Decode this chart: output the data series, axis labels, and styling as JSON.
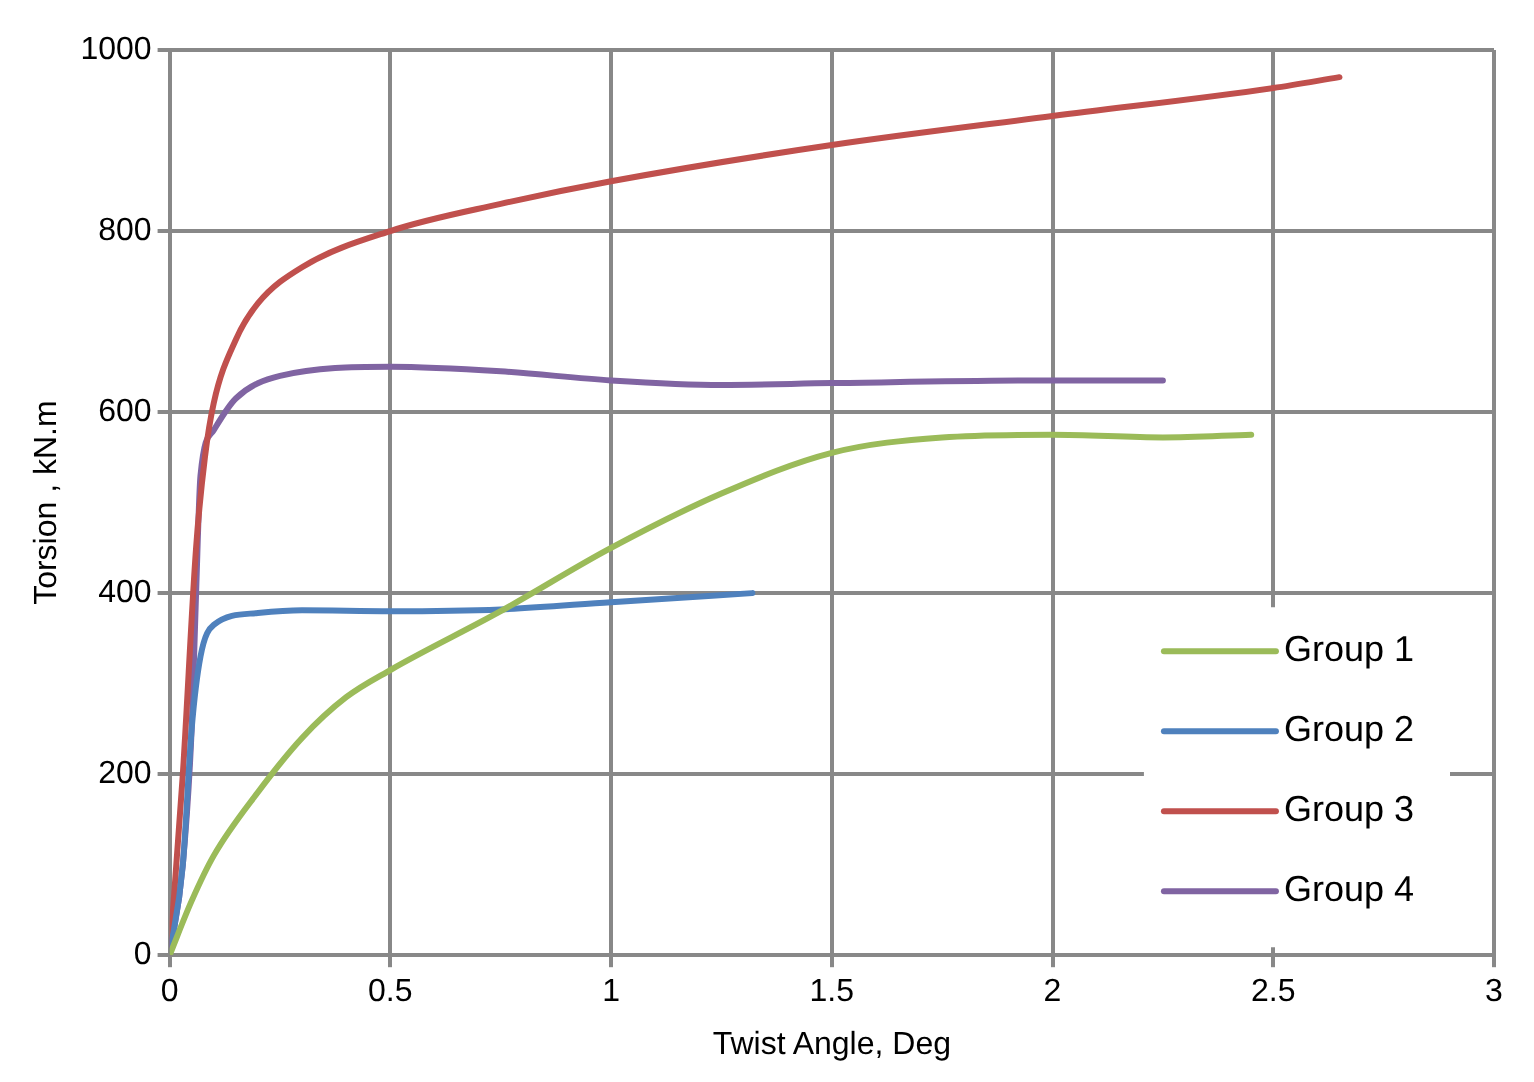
{
  "chart_data": {
    "type": "line",
    "xlabel": "Twist Angle, Deg",
    "ylabel": "Torsion , kN.m",
    "xlim": [
      0,
      3
    ],
    "xticks": [
      0,
      0.5,
      1,
      1.5,
      2,
      2.5,
      3
    ],
    "ylim": [
      0,
      1000
    ],
    "yticks": [
      0,
      200,
      400,
      600,
      800,
      1000
    ],
    "grid": true,
    "legend": "bottom right",
    "marker": "none",
    "line_style": "solid",
    "series": [
      {
        "name": "Group 1",
        "color": "#9bbb59",
        "x": [
          0,
          0.05,
          0.1,
          0.2,
          0.3,
          0.4,
          0.5,
          0.75,
          1,
          1.25,
          1.5,
          1.75,
          2,
          2.25,
          2.45
        ],
        "values": [
          0,
          60,
          110,
          180,
          240,
          285,
          315,
          380,
          450,
          510,
          555,
          572,
          575,
          572,
          575
        ]
      },
      {
        "name": "Group 2",
        "color": "#4f81bd",
        "x": [
          0,
          0.03,
          0.05,
          0.07,
          0.1,
          0.2,
          0.3,
          0.5,
          0.75,
          1,
          1.32
        ],
        "values": [
          0,
          100,
          250,
          330,
          365,
          378,
          381,
          380,
          382,
          390,
          400
        ]
      },
      {
        "name": "Group 3",
        "color": "#c0504d",
        "x": [
          0,
          0.03,
          0.06,
          0.08,
          0.1,
          0.15,
          0.2,
          0.3,
          0.5,
          0.75,
          1,
          1.5,
          2,
          2.5,
          2.65
        ],
        "values": [
          0,
          200,
          450,
          550,
          610,
          680,
          720,
          760,
          800,
          830,
          855,
          895,
          927,
          958,
          970
        ]
      },
      {
        "name": "Group 4",
        "color": "#8064a2",
        "x": [
          0,
          0.03,
          0.05,
          0.06,
          0.07,
          0.1,
          0.15,
          0.25,
          0.5,
          0.75,
          1,
          1.25,
          1.5,
          2,
          2.25
        ],
        "values": [
          0,
          100,
          250,
          400,
          530,
          580,
          615,
          640,
          650,
          645,
          635,
          630,
          632,
          635,
          635
        ]
      }
    ]
  }
}
